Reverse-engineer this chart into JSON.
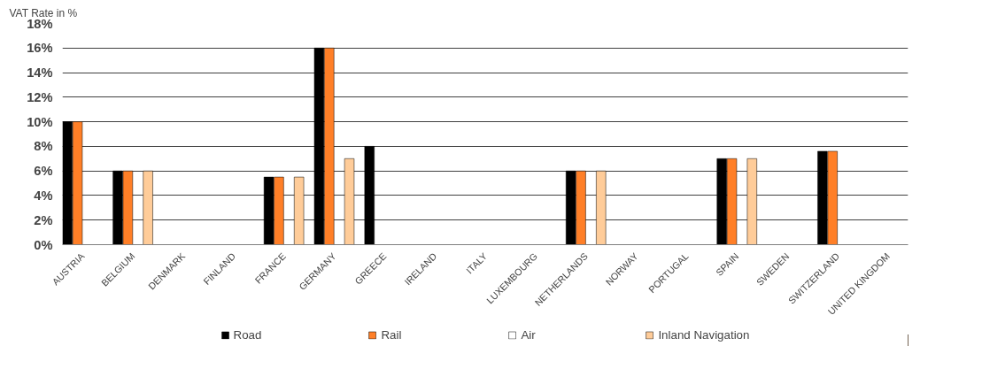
{
  "chart_data": {
    "type": "bar",
    "ylabel": "VAT Rate in %",
    "categories": [
      "AUSTRIA",
      "BELGIUM",
      "DENMARK",
      "FINLAND",
      "FRANCE",
      "GERMANY",
      "GREECE",
      "IRELAND",
      "ITALY",
      "LUXEMBOURG",
      "NETHERLANDS",
      "NORWAY",
      "PORTUGAL",
      "SPAIN",
      "SWEDEN",
      "SWITZERLAND",
      "UNITED KINGDOM"
    ],
    "series": [
      {
        "name": "Road",
        "color": "#000000",
        "values": [
          10,
          6,
          null,
          null,
          5.5,
          16,
          8,
          null,
          null,
          null,
          6,
          null,
          null,
          7,
          null,
          7.6,
          null
        ]
      },
      {
        "name": "Rail",
        "color": "#ff7f27",
        "values": [
          10,
          6,
          null,
          null,
          5.5,
          16,
          null,
          null,
          null,
          null,
          6,
          null,
          null,
          7,
          null,
          7.6,
          null
        ]
      },
      {
        "name": "Air",
        "color": "#ffffff",
        "values": [
          null,
          null,
          null,
          null,
          null,
          null,
          null,
          null,
          null,
          null,
          null,
          null,
          null,
          null,
          null,
          null,
          null
        ]
      },
      {
        "name": "Inland Navigation",
        "color": "#ffcc99",
        "values": [
          null,
          6,
          null,
          null,
          5.5,
          7,
          null,
          null,
          null,
          null,
          6,
          null,
          null,
          7,
          null,
          null,
          null
        ]
      }
    ],
    "ylim": [
      0,
      18
    ],
    "yticks": [
      {
        "value": 0,
        "label": "0%"
      },
      {
        "value": 2,
        "label": "2%"
      },
      {
        "value": 4,
        "label": "4%"
      },
      {
        "value": 6,
        "label": "6%"
      },
      {
        "value": 8,
        "label": "8%"
      },
      {
        "value": 10,
        "label": "10%"
      },
      {
        "value": 12,
        "label": "12%"
      },
      {
        "value": 14,
        "label": "14%"
      },
      {
        "value": 16,
        "label": "16%"
      },
      {
        "value": 18,
        "label": "18%"
      }
    ],
    "grid": "y",
    "legend": "bottom"
  }
}
